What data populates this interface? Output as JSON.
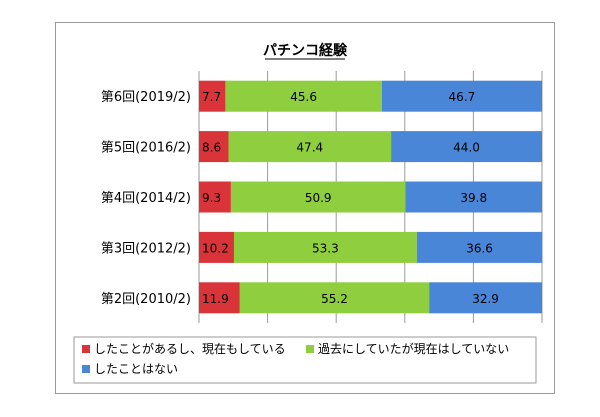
{
  "chart_data": {
    "type": "bar",
    "orientation": "horizontal",
    "stacked": "percent",
    "title": "パチンコ経験",
    "categories": [
      "第6回(2019/2)",
      "第5回(2016/2)",
      "第4回(2014/2)",
      "第3回(2012/2)",
      "第2回(2010/2)"
    ],
    "series": [
      {
        "name": "したことがあるし、現在もしている",
        "color": "#d9343a",
        "values": [
          7.7,
          8.6,
          9.3,
          10.2,
          11.9
        ]
      },
      {
        "name": "過去にしていたが現在はしていない",
        "color": "#8fce3e",
        "values": [
          45.6,
          47.4,
          50.9,
          53.3,
          55.2
        ]
      },
      {
        "name": "したことはない",
        "color": "#4a86d8",
        "values": [
          46.7,
          44.0,
          39.8,
          36.6,
          32.9
        ]
      }
    ],
    "xlim": [
      0,
      100
    ],
    "grid": true,
    "legend_position": "bottom"
  }
}
